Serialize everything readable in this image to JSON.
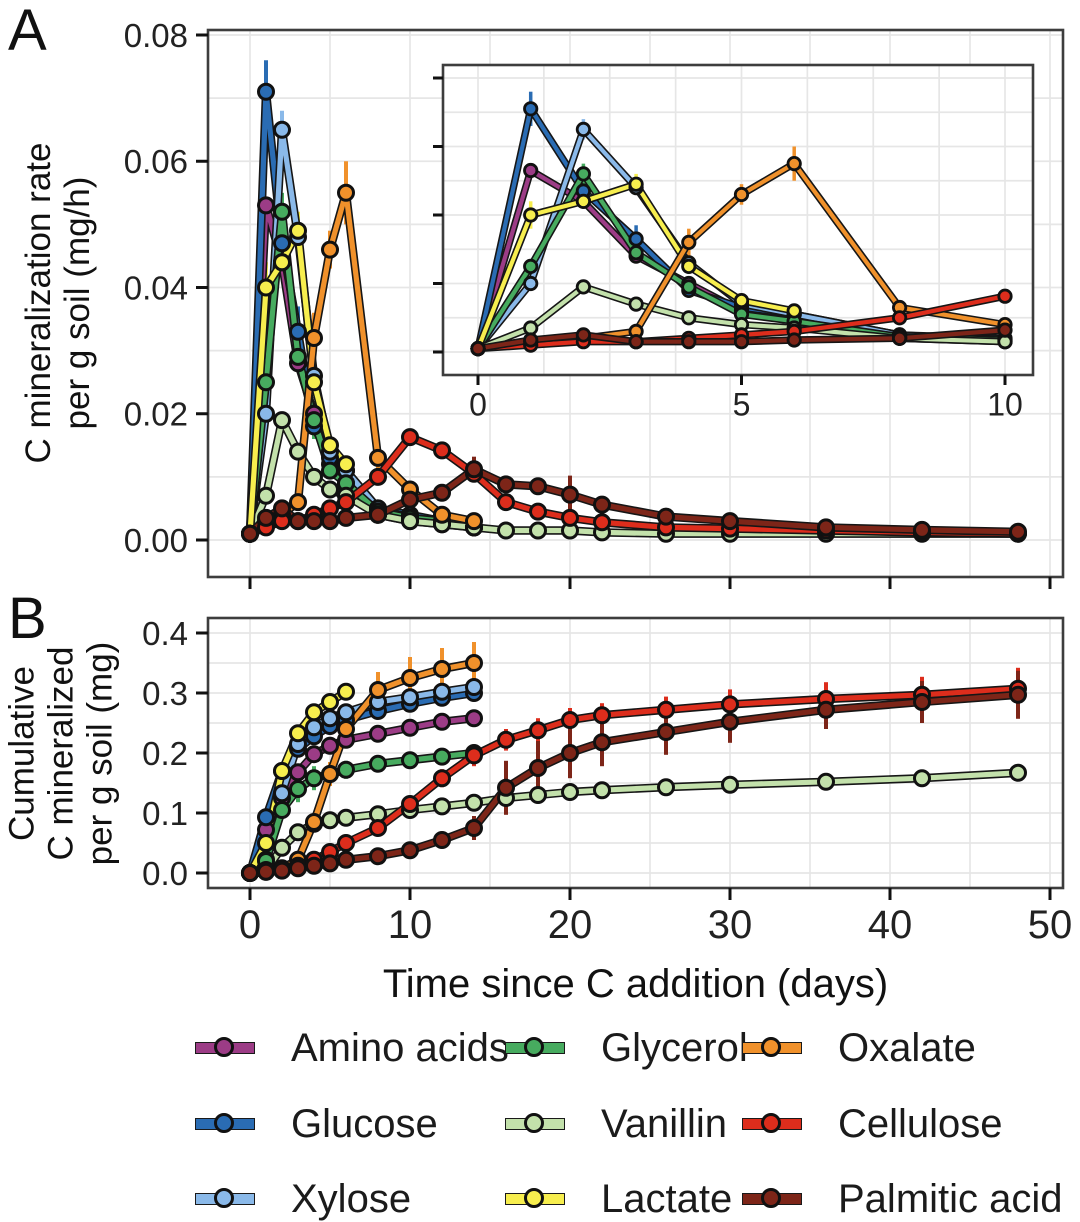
{
  "figure": {
    "panel_a_label": "A",
    "panel_b_label": "B",
    "x_axis_title": "Time since C addition (days)",
    "panel_a_y_title_lines": [
      "C mineralization rate",
      "per g soil (mg/h)"
    ],
    "panel_b_y_title_lines": [
      "Cumulative",
      "C mineralized",
      "per g soil (mg)"
    ],
    "grid_color": "#e6e6e6",
    "axis_color": "#3d3d3d",
    "text_color": "#222222"
  },
  "legend": {
    "items": [
      {
        "label": "Amino acids",
        "color": "#9c3c86"
      },
      {
        "label": "Glucose",
        "color": "#2a6cb3"
      },
      {
        "label": "Xylose",
        "color": "#8ab9e9"
      },
      {
        "label": "Glycerol",
        "color": "#47ab5f"
      },
      {
        "label": "Vanillin",
        "color": "#c3e1ab"
      },
      {
        "label": "Lactate",
        "color": "#f7ee4e"
      },
      {
        "label": "Oxalate",
        "color": "#f0912b"
      },
      {
        "label": "Cellulose",
        "color": "#dd2d1c"
      },
      {
        "label": "Palmitic acid",
        "color": "#7d2518"
      }
    ]
  },
  "chart_data": [
    {
      "id": "panel_a",
      "type": "line",
      "title": "",
      "xlabel": "",
      "ylabel": "C mineralization rate per g soil (mg/h)",
      "xlim": [
        0,
        50
      ],
      "ylim": [
        0,
        0.08
      ],
      "xticks": [
        0,
        10,
        20,
        30,
        40,
        50
      ],
      "x_tick_labels": [],
      "yticks": [
        0,
        0.02,
        0.04,
        0.06,
        0.08
      ],
      "y_tick_labels": [
        "0.00",
        "0.02",
        "0.04",
        "0.06",
        "0.08"
      ],
      "grid": {
        "x_step": 5,
        "y_step": 0.01
      },
      "legend_position": "bottom",
      "inset": {
        "xlim": [
          0,
          10
        ],
        "ylim": [
          0,
          0.08
        ],
        "xticks": [
          0,
          5,
          10
        ],
        "x_tick_labels": [
          "0",
          "5",
          "10"
        ],
        "yticks": [
          0,
          0.02,
          0.04,
          0.06,
          0.08
        ]
      },
      "series": [
        {
          "name": "Amino acids",
          "key": "amino-acids",
          "color": "#9c3c86",
          "x": [
            0,
            1,
            2,
            3,
            4,
            5,
            6,
            8,
            10,
            12,
            14
          ],
          "y": [
            0.001,
            0.053,
            0.044,
            0.028,
            0.02,
            0.012,
            0.009,
            0.004,
            0.003,
            0.0025,
            0.002
          ]
        },
        {
          "name": "Glucose",
          "key": "glucose",
          "color": "#2a6cb3",
          "x": [
            0,
            1,
            2,
            3,
            4,
            5,
            6,
            8,
            10,
            12,
            14
          ],
          "y": [
            0.001,
            0.071,
            0.047,
            0.033,
            0.018,
            0.013,
            0.011,
            0.005,
            0.004,
            0.003,
            0.002
          ],
          "e": [
            0,
            0.005,
            0.003,
            0.004,
            0,
            0.002,
            0,
            0,
            0,
            0,
            0
          ]
        },
        {
          "name": "Xylose",
          "key": "xylose",
          "color": "#8ab9e9",
          "x": [
            0,
            1,
            2,
            3,
            4,
            5,
            6,
            8,
            10,
            12,
            14
          ],
          "y": [
            0.001,
            0.02,
            0.065,
            0.048,
            0.026,
            0.014,
            0.011,
            0.005,
            0.0035,
            0.003,
            0.002
          ],
          "e": [
            0,
            0,
            0.003,
            0.002,
            0,
            0,
            0,
            0,
            0,
            0,
            0
          ]
        },
        {
          "name": "Glycerol",
          "key": "glycerol",
          "color": "#47ab5f",
          "x": [
            0,
            1,
            2,
            3,
            4,
            5,
            6,
            8,
            10,
            12,
            14
          ],
          "y": [
            0.001,
            0.025,
            0.052,
            0.029,
            0.019,
            0.011,
            0.009,
            0.0045,
            0.0035,
            0.003,
            0.002
          ],
          "e": [
            0,
            0,
            0.003,
            0,
            0.003,
            0,
            0,
            0,
            0,
            0,
            0
          ]
        },
        {
          "name": "Vanillin",
          "key": "vanillin",
          "color": "#c3e1ab",
          "x": [
            0,
            1,
            2,
            3,
            4,
            5,
            6,
            8,
            10,
            12,
            14,
            16,
            18,
            20,
            22,
            26,
            30,
            36,
            42,
            48
          ],
          "y": [
            0.001,
            0.007,
            0.019,
            0.014,
            0.01,
            0.008,
            0.007,
            0.004,
            0.003,
            0.0025,
            0.002,
            0.0015,
            0.0015,
            0.0015,
            0.0012,
            0.001,
            0.001,
            0.001,
            0.001,
            0.001
          ]
        },
        {
          "name": "Lactate",
          "key": "lactate",
          "color": "#f7ee4e",
          "x": [
            0,
            1,
            2,
            3,
            4,
            5,
            6
          ],
          "y": [
            0.001,
            0.04,
            0.044,
            0.049,
            0.025,
            0.015,
            0.012
          ],
          "e": [
            0,
            0.004,
            0,
            0.003,
            0,
            0,
            0
          ]
        },
        {
          "name": "Oxalate",
          "key": "oxalate",
          "color": "#f0912b",
          "x": [
            0,
            1,
            2,
            3,
            4,
            5,
            6,
            8,
            10,
            12,
            14
          ],
          "y": [
            0.001,
            0.003,
            0.004,
            0.006,
            0.032,
            0.046,
            0.055,
            0.013,
            0.008,
            0.004,
            0.003
          ],
          "e": [
            0,
            0,
            0,
            0,
            0.004,
            0.003,
            0.005,
            0.002,
            0,
            0,
            0
          ]
        },
        {
          "name": "Cellulose",
          "key": "cellulose",
          "color": "#dd2d1c",
          "x": [
            0,
            1,
            2,
            3,
            4,
            5,
            6,
            8,
            10,
            12,
            14,
            16,
            18,
            20,
            22,
            26,
            30,
            36,
            42,
            48
          ],
          "y": [
            0.001,
            0.002,
            0.003,
            0.003,
            0.004,
            0.005,
            0.006,
            0.01,
            0.0163,
            0.0142,
            0.0105,
            0.006,
            0.0045,
            0.0035,
            0.0028,
            0.002,
            0.0018,
            0.0015,
            0.0012,
            0.001
          ]
        },
        {
          "name": "Palmitic acid",
          "key": "palmitic-acid",
          "color": "#7d2518",
          "x": [
            0,
            1,
            2,
            3,
            4,
            5,
            6,
            8,
            10,
            12,
            14,
            16,
            18,
            20,
            22,
            26,
            30,
            36,
            42,
            48
          ],
          "y": [
            0.001,
            0.0035,
            0.005,
            0.003,
            0.003,
            0.003,
            0.0035,
            0.004,
            0.0064,
            0.0075,
            0.0112,
            0.0088,
            0.0085,
            0.0072,
            0.0056,
            0.0037,
            0.003,
            0.002,
            0.0016,
            0.0013
          ],
          "e": [
            0,
            0,
            0,
            0,
            0,
            0,
            0,
            0,
            0,
            0,
            0.002,
            0,
            0,
            0.003,
            0,
            0,
            0,
            0,
            0,
            0
          ]
        }
      ]
    },
    {
      "id": "panel_b",
      "type": "line",
      "title": "",
      "xlabel": "Time since C addition (days)",
      "ylabel": "Cumulative C mineralized per g soil (mg)",
      "xlim": [
        0,
        50
      ],
      "ylim": [
        0,
        0.4
      ],
      "xticks": [
        0,
        10,
        20,
        30,
        40,
        50
      ],
      "x_tick_labels": [
        "0",
        "10",
        "20",
        "30",
        "40",
        "50"
      ],
      "yticks": [
        0,
        0.1,
        0.2,
        0.3,
        0.4
      ],
      "y_tick_labels": [
        "0.0",
        "0.1",
        "0.2",
        "0.3",
        "0.4"
      ],
      "grid": {
        "x_step": 5,
        "y_step": 0.05
      },
      "legend_position": "bottom",
      "series": [
        {
          "name": "Amino acids",
          "key": "amino-acids",
          "color": "#9c3c86",
          "x": [
            0,
            1,
            2,
            3,
            4,
            5,
            6,
            8,
            10,
            12,
            14
          ],
          "y": [
            0,
            0.072,
            0.125,
            0.168,
            0.198,
            0.212,
            0.222,
            0.232,
            0.242,
            0.252,
            0.258
          ]
        },
        {
          "name": "Glucose",
          "key": "glucose",
          "color": "#2a6cb3",
          "x": [
            0,
            1,
            2,
            3,
            4,
            5,
            6,
            8,
            10,
            12,
            14
          ],
          "y": [
            0,
            0.093,
            0.17,
            0.207,
            0.228,
            0.245,
            0.255,
            0.27,
            0.282,
            0.292,
            0.3
          ],
          "e": [
            0,
            0,
            0.01,
            0.012,
            0.012,
            0,
            0,
            0,
            0,
            0,
            0.01
          ]
        },
        {
          "name": "Xylose",
          "key": "xylose",
          "color": "#8ab9e9",
          "x": [
            0,
            1,
            2,
            3,
            4,
            5,
            6,
            8,
            10,
            12,
            14
          ],
          "y": [
            0,
            0.022,
            0.133,
            0.215,
            0.243,
            0.258,
            0.268,
            0.285,
            0.293,
            0.302,
            0.31
          ],
          "e": [
            0,
            0,
            0,
            0,
            0,
            0,
            0,
            0,
            0,
            0,
            0.012
          ]
        },
        {
          "name": "Glycerol",
          "key": "glycerol",
          "color": "#47ab5f",
          "x": [
            0,
            1,
            2,
            3,
            4,
            5,
            6,
            8,
            10,
            12,
            14
          ],
          "y": [
            0,
            0.02,
            0.105,
            0.14,
            0.158,
            0.165,
            0.172,
            0.182,
            0.188,
            0.194,
            0.2
          ],
          "e": [
            0,
            0,
            0.012,
            0.022,
            0.02,
            0.015,
            0.015,
            0,
            0,
            0,
            0.01
          ]
        },
        {
          "name": "Vanillin",
          "key": "vanillin",
          "color": "#c3e1ab",
          "x": [
            0,
            1,
            2,
            3,
            4,
            5,
            6,
            8,
            10,
            12,
            14,
            16,
            18,
            20,
            22,
            26,
            30,
            36,
            42,
            48
          ],
          "y": [
            0,
            0.005,
            0.042,
            0.068,
            0.082,
            0.088,
            0.092,
            0.098,
            0.105,
            0.111,
            0.117,
            0.125,
            0.13,
            0.135,
            0.138,
            0.143,
            0.147,
            0.152,
            0.158,
            0.167
          ]
        },
        {
          "name": "Lactate",
          "key": "lactate",
          "color": "#f7ee4e",
          "x": [
            0,
            1,
            2,
            3,
            4,
            5,
            6
          ],
          "y": [
            0,
            0.05,
            0.17,
            0.233,
            0.268,
            0.285,
            0.302
          ]
        },
        {
          "name": "Oxalate",
          "key": "oxalate",
          "color": "#f0912b",
          "x": [
            0,
            1,
            2,
            3,
            4,
            5,
            6,
            8,
            10,
            12,
            14
          ],
          "y": [
            0,
            0.003,
            0.008,
            0.022,
            0.085,
            0.165,
            0.24,
            0.305,
            0.325,
            0.34,
            0.35
          ],
          "e": [
            0,
            0,
            0,
            0,
            0.01,
            0.02,
            0.025,
            0.03,
            0.035,
            0.035,
            0.035
          ]
        },
        {
          "name": "Cellulose",
          "key": "cellulose",
          "color": "#dd2d1c",
          "x": [
            0,
            1,
            2,
            3,
            4,
            5,
            6,
            8,
            10,
            12,
            14,
            16,
            18,
            20,
            22,
            26,
            30,
            36,
            42,
            48
          ],
          "y": [
            0,
            0.002,
            0.006,
            0.012,
            0.022,
            0.035,
            0.05,
            0.075,
            0.115,
            0.158,
            0.196,
            0.222,
            0.238,
            0.255,
            0.263,
            0.272,
            0.281,
            0.29,
            0.297,
            0.307
          ],
          "e": [
            0,
            0,
            0,
            0,
            0,
            0,
            0,
            0.01,
            0.012,
            0.015,
            0.018,
            0.018,
            0.02,
            0.02,
            0.02,
            0.022,
            0.025,
            0.028,
            0.03,
            0.035
          ]
        },
        {
          "name": "Palmitic acid",
          "key": "palmitic-acid",
          "color": "#7d2518",
          "x": [
            0,
            1,
            2,
            3,
            4,
            5,
            6,
            8,
            10,
            12,
            14,
            16,
            18,
            20,
            22,
            26,
            30,
            36,
            42,
            48
          ],
          "y": [
            0,
            0.002,
            0.004,
            0.008,
            0.012,
            0.016,
            0.022,
            0.028,
            0.038,
            0.055,
            0.075,
            0.142,
            0.175,
            0.2,
            0.218,
            0.235,
            0.252,
            0.272,
            0.285,
            0.297
          ],
          "e": [
            0,
            0,
            0,
            0,
            0,
            0,
            0,
            0,
            0.005,
            0.008,
            0.02,
            0.045,
            0.045,
            0.042,
            0.04,
            0.038,
            0.035,
            0.032,
            0.035,
            0.04
          ]
        }
      ]
    }
  ]
}
